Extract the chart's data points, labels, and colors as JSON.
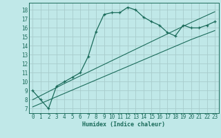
{
  "title": "",
  "xlabel": "Humidex (Indice chaleur)",
  "bg_color": "#c0e8e8",
  "grid_color": "#a8cccc",
  "line_color": "#1a6b5a",
  "spine_color": "#1a6b5a",
  "xlim": [
    -0.5,
    23.5
  ],
  "ylim": [
    6.5,
    18.8
  ],
  "yticks": [
    7,
    8,
    9,
    10,
    11,
    12,
    13,
    14,
    15,
    16,
    17,
    18
  ],
  "xticks": [
    0,
    1,
    2,
    3,
    4,
    5,
    6,
    7,
    8,
    9,
    10,
    11,
    12,
    13,
    14,
    15,
    16,
    17,
    18,
    19,
    20,
    21,
    22,
    23
  ],
  "line1_x": [
    0,
    1,
    2,
    3,
    4,
    5,
    6,
    7,
    8,
    9,
    10,
    11,
    12,
    13,
    14,
    15,
    16,
    17,
    18,
    19,
    20,
    21,
    22,
    23
  ],
  "line1_y": [
    9.0,
    8.0,
    7.0,
    9.5,
    10.0,
    10.5,
    11.0,
    12.8,
    15.6,
    17.5,
    17.7,
    17.7,
    18.3,
    18.0,
    17.2,
    16.7,
    16.3,
    15.5,
    15.1,
    16.3,
    16.0,
    16.0,
    16.3,
    16.7
  ],
  "line2_x": [
    0,
    4,
    8,
    12,
    16,
    20,
    23
  ],
  "line2_y": [
    7.2,
    8.7,
    10.2,
    11.7,
    13.2,
    14.7,
    15.7
  ],
  "line3_x": [
    0,
    4,
    8,
    12,
    16,
    20,
    23
  ],
  "line3_y": [
    8.0,
    9.8,
    11.5,
    13.2,
    14.9,
    16.6,
    17.8
  ],
  "xlabel_fontsize": 6,
  "tick_fontsize": 5.5
}
